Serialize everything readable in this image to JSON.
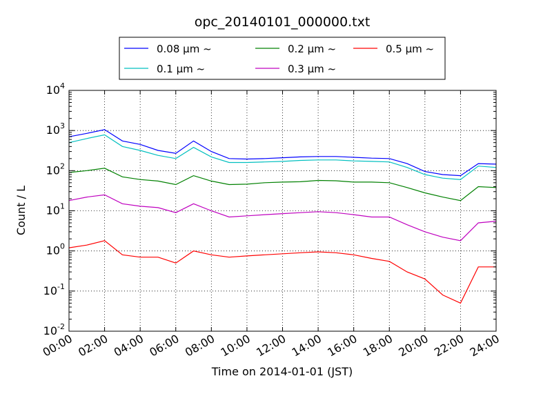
{
  "chart_data": {
    "type": "line",
    "title": "opc_20140101_000000.txt",
    "xlabel": "Time on 2014-01-01 (JST)",
    "ylabel": "Count / L",
    "yscale": "log",
    "ylim": [
      0.01,
      10000
    ],
    "xlim": [
      "00:00",
      "24:00"
    ],
    "grid": true,
    "legend_position": "top-center",
    "x_ticks": [
      "00:00",
      "02:00",
      "04:00",
      "06:00",
      "08:00",
      "10:00",
      "12:00",
      "14:00",
      "16:00",
      "18:00",
      "20:00",
      "22:00",
      "24:00"
    ],
    "y_ticks": [
      {
        "base": "10",
        "exp": "-2"
      },
      {
        "base": "10",
        "exp": "-1"
      },
      {
        "base": "10",
        "exp": "0"
      },
      {
        "base": "10",
        "exp": "1"
      },
      {
        "base": "10",
        "exp": "2"
      },
      {
        "base": "10",
        "exp": "3"
      },
      {
        "base": "10",
        "exp": "4"
      }
    ],
    "x": [
      "00:00",
      "01:00",
      "02:00",
      "03:00",
      "04:00",
      "05:00",
      "06:00",
      "07:00",
      "08:00",
      "09:00",
      "10:00",
      "11:00",
      "12:00",
      "13:00",
      "14:00",
      "15:00",
      "16:00",
      "17:00",
      "18:00",
      "19:00",
      "20:00",
      "21:00",
      "22:00",
      "23:00",
      "24:00"
    ],
    "series": [
      {
        "name": "0.08 µm ~",
        "color": "#0000ff",
        "values": [
          700,
          850,
          1050,
          550,
          450,
          320,
          270,
          550,
          300,
          200,
          195,
          200,
          210,
          220,
          225,
          225,
          215,
          205,
          200,
          150,
          95,
          80,
          75,
          150,
          145
        ]
      },
      {
        "name": "0.1 µm ~",
        "color": "#00bfbf",
        "values": [
          500,
          630,
          780,
          400,
          320,
          240,
          200,
          380,
          220,
          160,
          160,
          165,
          170,
          180,
          185,
          185,
          175,
          170,
          165,
          120,
          80,
          65,
          60,
          130,
          120
        ]
      },
      {
        "name": "0.2 µm ~",
        "color": "#008000",
        "values": [
          90,
          100,
          115,
          70,
          60,
          55,
          45,
          75,
          55,
          45,
          46,
          50,
          52,
          53,
          57,
          56,
          52,
          52,
          50,
          38,
          28,
          22,
          18,
          40,
          38
        ]
      },
      {
        "name": "0.3 µm ~",
        "color": "#bf00bf",
        "values": [
          18,
          22,
          25,
          15,
          13,
          12,
          9,
          15,
          10,
          7,
          7.5,
          8,
          8.5,
          9,
          9.5,
          9,
          8,
          7,
          7,
          4.5,
          3,
          2.2,
          1.8,
          5,
          5.5
        ]
      },
      {
        "name": "0.5 µm ~",
        "color": "#ff0000",
        "values": [
          1.2,
          1.4,
          1.8,
          0.8,
          0.7,
          0.7,
          0.5,
          1.0,
          0.8,
          0.7,
          0.75,
          0.8,
          0.85,
          0.9,
          0.95,
          0.9,
          0.8,
          0.65,
          0.55,
          0.3,
          0.2,
          0.08,
          0.05,
          0.4,
          0.4
        ]
      }
    ]
  }
}
